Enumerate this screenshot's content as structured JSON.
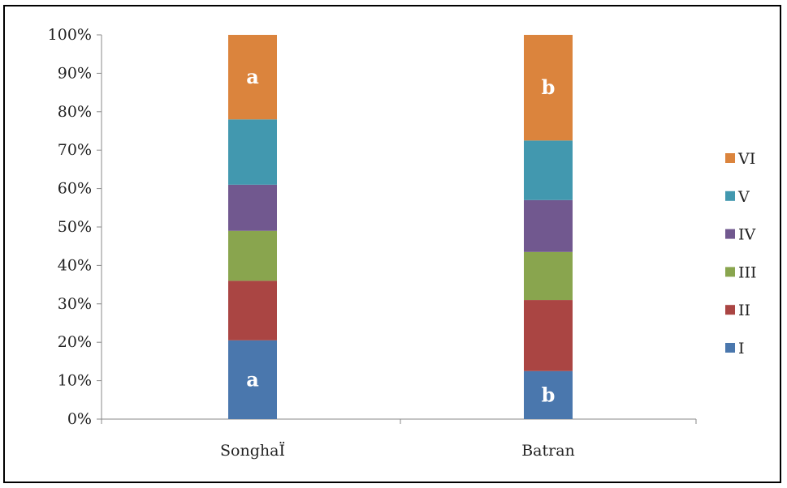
{
  "chart_data": {
    "type": "bar",
    "stacked": true,
    "percent": true,
    "categories": [
      "SonghaÏ",
      "Batran"
    ],
    "series": [
      {
        "name": "I",
        "values": [
          20.5,
          12.5
        ],
        "color": "#4a77ad"
      },
      {
        "name": "II",
        "values": [
          15.5,
          18.5
        ],
        "color": "#aa4543"
      },
      {
        "name": "III",
        "values": [
          13.0,
          12.5
        ],
        "color": "#89a54e"
      },
      {
        "name": "IV",
        "values": [
          12.0,
          13.5
        ],
        "color": "#71588f"
      },
      {
        "name": "V",
        "values": [
          17.0,
          15.5
        ],
        "color": "#4298af"
      },
      {
        "name": "VI",
        "values": [
          22.0,
          27.5
        ],
        "color": "#db843d"
      }
    ],
    "yticks": [
      "0%",
      "10%",
      "20%",
      "30%",
      "40%",
      "50%",
      "60%",
      "70%",
      "80%",
      "90%",
      "100%"
    ],
    "ylim": [
      0,
      100
    ],
    "grid": false,
    "legend_position": "right",
    "legend_order": [
      "VI",
      "V",
      "IV",
      "III",
      "II",
      "I"
    ],
    "annotations": [
      {
        "category": "SonghaÏ",
        "series": "I",
        "text": "a"
      },
      {
        "category": "SonghaÏ",
        "series": "VI",
        "text": "a"
      },
      {
        "category": "Batran",
        "series": "I",
        "text": "b"
      },
      {
        "category": "Batran",
        "series": "VI",
        "text": "b"
      }
    ]
  }
}
